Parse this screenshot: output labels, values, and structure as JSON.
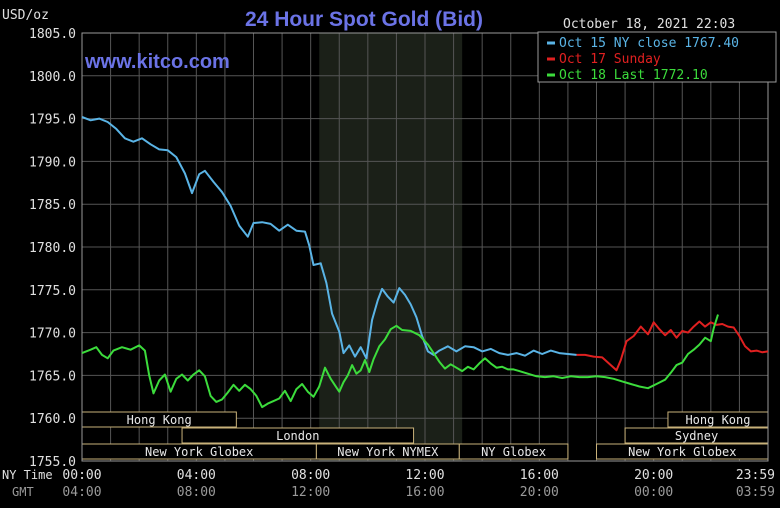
{
  "chart_data": {
    "type": "line",
    "title": "24 Hour Spot Gold (Bid)",
    "ylabel": "USD/oz",
    "timestamp": "October 18, 2021 22:03",
    "watermark": "www.kitco.com",
    "ylim": [
      1755.0,
      1805.0
    ],
    "y_ticks": [
      "1805.0",
      "1800.0",
      "1795.0",
      "1790.0",
      "1785.0",
      "1780.0",
      "1775.0",
      "1770.0",
      "1765.0",
      "1760.0",
      "1755.0"
    ],
    "xlim": [
      0,
      24
    ],
    "x_ticks": [
      {
        "x": 0,
        "ny": "00:00",
        "gmt": "04:00"
      },
      {
        "x": 4,
        "ny": "04:00",
        "gmt": "08:00"
      },
      {
        "x": 8,
        "ny": "08:00",
        "gmt": "12:00"
      },
      {
        "x": 12,
        "ny": "12:00",
        "gmt": "16:00"
      },
      {
        "x": 16,
        "ny": "16:00",
        "gmt": "20:00"
      },
      {
        "x": 20,
        "ny": "20:00",
        "gmt": "00:00"
      },
      {
        "x": 23.98,
        "ny": "23:59",
        "gmt": "03:59"
      }
    ],
    "x_row_labels": {
      "ny": "NY Time",
      "gmt": "GMT"
    },
    "shaded_region": [
      8.3,
      13.3
    ],
    "legend": [
      {
        "label": "Oct 15 NY close 1767.40",
        "color": "#5ab4e6"
      },
      {
        "label": "Oct 17 Sunday",
        "color": "#e02020"
      },
      {
        "label": "Oct 18 Last 1772.10",
        "color": "#3cdc3c"
      }
    ],
    "sessions": [
      {
        "label": "Hong Kong",
        "start": 0,
        "end": 5.4,
        "row": 0
      },
      {
        "label": "Hong Kong",
        "start": 20.5,
        "end": 24,
        "row": 0
      },
      {
        "label": "London",
        "start": 3.5,
        "end": 11.6,
        "row": 1
      },
      {
        "label": "Sydney",
        "start": 19.0,
        "end": 24,
        "row": 1
      },
      {
        "label": "New York Globex",
        "start": 0,
        "end": 8.2,
        "row": 2
      },
      {
        "label": "New York NYMEX",
        "start": 8.2,
        "end": 13.2,
        "row": 2
      },
      {
        "label": "NY Globex",
        "start": 13.2,
        "end": 17.0,
        "row": 2
      },
      {
        "label": "New York Globex",
        "start": 18.0,
        "end": 24,
        "row": 2
      }
    ],
    "series": [
      {
        "name": "Oct 15 NY close 1767.40",
        "color": "#5ab4e6",
        "points": [
          [
            0.0,
            1795.2
          ],
          [
            0.3,
            1794.8
          ],
          [
            0.6,
            1795.0
          ],
          [
            0.9,
            1794.6
          ],
          [
            1.2,
            1793.8
          ],
          [
            1.5,
            1792.7
          ],
          [
            1.8,
            1792.3
          ],
          [
            2.1,
            1792.7
          ],
          [
            2.4,
            1792.0
          ],
          [
            2.7,
            1791.4
          ],
          [
            3.0,
            1791.3
          ],
          [
            3.3,
            1790.5
          ],
          [
            3.6,
            1788.6
          ],
          [
            3.85,
            1786.3
          ],
          [
            4.1,
            1788.5
          ],
          [
            4.3,
            1788.9
          ],
          [
            4.6,
            1787.6
          ],
          [
            4.9,
            1786.4
          ],
          [
            5.2,
            1784.8
          ],
          [
            5.5,
            1782.5
          ],
          [
            5.8,
            1781.2
          ],
          [
            6.0,
            1782.8
          ],
          [
            6.3,
            1782.9
          ],
          [
            6.6,
            1782.7
          ],
          [
            6.9,
            1781.9
          ],
          [
            7.2,
            1782.6
          ],
          [
            7.5,
            1781.9
          ],
          [
            7.8,
            1781.8
          ],
          [
            7.95,
            1780.2
          ],
          [
            8.1,
            1777.9
          ],
          [
            8.35,
            1778.1
          ],
          [
            8.55,
            1775.8
          ],
          [
            8.75,
            1772.2
          ],
          [
            9.0,
            1770.1
          ],
          [
            9.15,
            1767.6
          ],
          [
            9.35,
            1768.5
          ],
          [
            9.55,
            1767.2
          ],
          [
            9.75,
            1768.3
          ],
          [
            9.95,
            1767.0
          ],
          [
            10.15,
            1771.5
          ],
          [
            10.35,
            1773.8
          ],
          [
            10.5,
            1775.1
          ],
          [
            10.7,
            1774.2
          ],
          [
            10.9,
            1773.5
          ],
          [
            11.1,
            1775.2
          ],
          [
            11.3,
            1774.4
          ],
          [
            11.5,
            1773.3
          ],
          [
            11.7,
            1771.8
          ],
          [
            11.9,
            1769.6
          ],
          [
            12.1,
            1767.8
          ],
          [
            12.3,
            1767.4
          ],
          [
            12.5,
            1767.9
          ],
          [
            12.8,
            1768.4
          ],
          [
            13.1,
            1767.8
          ],
          [
            13.4,
            1768.4
          ],
          [
            13.7,
            1768.3
          ],
          [
            14.0,
            1767.8
          ],
          [
            14.3,
            1768.1
          ],
          [
            14.6,
            1767.6
          ],
          [
            14.9,
            1767.4
          ],
          [
            15.2,
            1767.6
          ],
          [
            15.5,
            1767.3
          ],
          [
            15.8,
            1767.9
          ],
          [
            16.1,
            1767.5
          ],
          [
            16.4,
            1767.9
          ],
          [
            16.7,
            1767.6
          ],
          [
            17.0,
            1767.5
          ],
          [
            17.3,
            1767.4
          ]
        ]
      },
      {
        "name": "Oct 17 Sunday",
        "color": "#e02020",
        "points": [
          [
            17.3,
            1767.4
          ],
          [
            17.6,
            1767.4
          ],
          [
            17.9,
            1767.2
          ],
          [
            18.2,
            1767.1
          ],
          [
            18.5,
            1766.2
          ],
          [
            18.7,
            1765.6
          ],
          [
            18.85,
            1766.8
          ],
          [
            19.05,
            1769.0
          ],
          [
            19.3,
            1769.6
          ],
          [
            19.55,
            1770.7
          ],
          [
            19.8,
            1769.8
          ],
          [
            20.0,
            1771.2
          ],
          [
            20.2,
            1770.4
          ],
          [
            20.4,
            1769.7
          ],
          [
            20.6,
            1770.3
          ],
          [
            20.8,
            1769.4
          ],
          [
            21.0,
            1770.2
          ],
          [
            21.2,
            1770.0
          ],
          [
            21.4,
            1770.7
          ],
          [
            21.6,
            1771.3
          ],
          [
            21.8,
            1770.7
          ],
          [
            22.0,
            1771.2
          ],
          [
            22.2,
            1770.9
          ],
          [
            22.4,
            1771.0
          ],
          [
            22.6,
            1770.7
          ],
          [
            22.8,
            1770.6
          ],
          [
            23.0,
            1769.6
          ],
          [
            23.2,
            1768.4
          ],
          [
            23.4,
            1767.8
          ],
          [
            23.6,
            1767.9
          ],
          [
            23.8,
            1767.7
          ],
          [
            24.0,
            1767.8
          ]
        ]
      },
      {
        "name": "Oct 18 Last 1772.10",
        "color": "#3cdc3c",
        "points": [
          [
            0.0,
            1767.6
          ],
          [
            0.3,
            1768.0
          ],
          [
            0.5,
            1768.3
          ],
          [
            0.7,
            1767.4
          ],
          [
            0.9,
            1767.0
          ],
          [
            1.1,
            1767.9
          ],
          [
            1.4,
            1768.3
          ],
          [
            1.7,
            1768.0
          ],
          [
            2.0,
            1768.5
          ],
          [
            2.2,
            1767.9
          ],
          [
            2.35,
            1765.0
          ],
          [
            2.5,
            1762.9
          ],
          [
            2.7,
            1764.4
          ],
          [
            2.9,
            1765.1
          ],
          [
            3.1,
            1763.1
          ],
          [
            3.3,
            1764.6
          ],
          [
            3.5,
            1765.1
          ],
          [
            3.7,
            1764.4
          ],
          [
            3.9,
            1765.1
          ],
          [
            4.1,
            1765.6
          ],
          [
            4.3,
            1764.9
          ],
          [
            4.5,
            1762.6
          ],
          [
            4.7,
            1761.9
          ],
          [
            4.9,
            1762.2
          ],
          [
            5.1,
            1763.0
          ],
          [
            5.3,
            1763.9
          ],
          [
            5.5,
            1763.2
          ],
          [
            5.7,
            1763.9
          ],
          [
            5.9,
            1763.4
          ],
          [
            6.1,
            1762.6
          ],
          [
            6.3,
            1761.3
          ],
          [
            6.5,
            1761.7
          ],
          [
            6.7,
            1762.0
          ],
          [
            6.9,
            1762.3
          ],
          [
            7.1,
            1763.2
          ],
          [
            7.3,
            1762.0
          ],
          [
            7.5,
            1763.4
          ],
          [
            7.7,
            1764.0
          ],
          [
            7.9,
            1763.1
          ],
          [
            8.1,
            1762.5
          ],
          [
            8.3,
            1763.7
          ],
          [
            8.5,
            1765.9
          ],
          [
            8.7,
            1764.6
          ],
          [
            8.9,
            1763.6
          ],
          [
            9.0,
            1763.1
          ],
          [
            9.15,
            1764.2
          ],
          [
            9.3,
            1765.0
          ],
          [
            9.45,
            1766.2
          ],
          [
            9.6,
            1765.2
          ],
          [
            9.75,
            1765.6
          ],
          [
            9.9,
            1766.8
          ],
          [
            10.05,
            1765.4
          ],
          [
            10.2,
            1766.9
          ],
          [
            10.4,
            1768.4
          ],
          [
            10.6,
            1769.2
          ],
          [
            10.8,
            1770.4
          ],
          [
            11.0,
            1770.8
          ],
          [
            11.2,
            1770.3
          ],
          [
            11.5,
            1770.2
          ],
          [
            11.8,
            1769.7
          ],
          [
            12.1,
            1768.6
          ],
          [
            12.3,
            1767.6
          ],
          [
            12.5,
            1766.6
          ],
          [
            12.7,
            1765.8
          ],
          [
            12.9,
            1766.3
          ],
          [
            13.1,
            1765.9
          ],
          [
            13.3,
            1765.5
          ],
          [
            13.5,
            1766.0
          ],
          [
            13.7,
            1765.7
          ],
          [
            13.9,
            1766.4
          ],
          [
            14.1,
            1767.0
          ],
          [
            14.3,
            1766.4
          ],
          [
            14.5,
            1765.9
          ],
          [
            14.7,
            1766.0
          ],
          [
            14.9,
            1765.7
          ],
          [
            15.1,
            1765.7
          ],
          [
            15.3,
            1765.5
          ],
          [
            15.6,
            1765.2
          ],
          [
            15.9,
            1764.9
          ],
          [
            16.2,
            1764.8
          ],
          [
            16.5,
            1764.9
          ],
          [
            16.8,
            1764.7
          ],
          [
            17.1,
            1764.9
          ],
          [
            17.4,
            1764.8
          ],
          [
            17.7,
            1764.8
          ],
          [
            18.0,
            1764.9
          ],
          [
            18.3,
            1764.8
          ],
          [
            18.6,
            1764.6
          ],
          [
            18.9,
            1764.3
          ],
          [
            19.2,
            1764.0
          ],
          [
            19.5,
            1763.7
          ],
          [
            19.8,
            1763.5
          ],
          [
            20.1,
            1764.0
          ],
          [
            20.4,
            1764.5
          ],
          [
            20.6,
            1765.3
          ],
          [
            20.8,
            1766.2
          ],
          [
            21.0,
            1766.5
          ],
          [
            21.2,
            1767.5
          ],
          [
            21.4,
            1768.0
          ],
          [
            21.6,
            1768.6
          ],
          [
            21.8,
            1769.4
          ],
          [
            22.0,
            1769.0
          ],
          [
            22.1,
            1770.5
          ],
          [
            22.25,
            1772.1
          ]
        ]
      }
    ]
  }
}
